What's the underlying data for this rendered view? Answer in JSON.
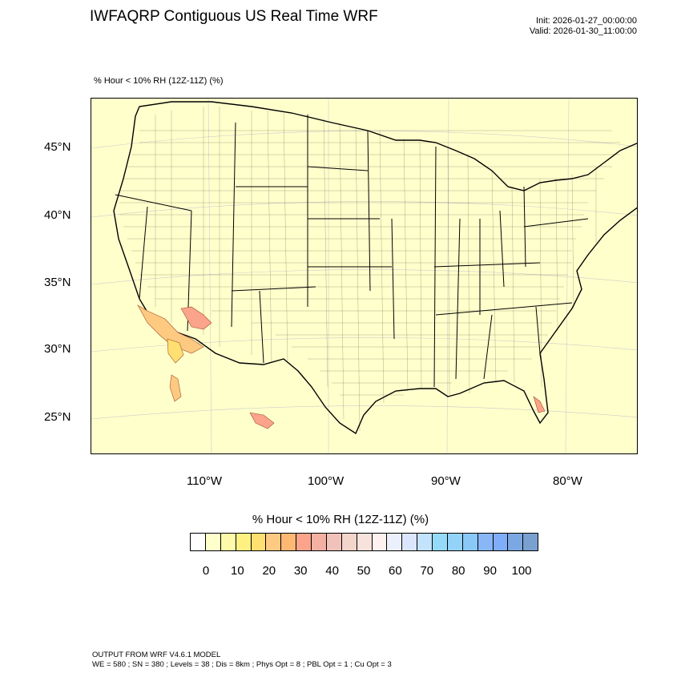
{
  "header": {
    "title": "IWFAQRP Contiguous US Real Time WRF",
    "init": "Init: 2026-01-27_00:00:00",
    "valid": "Valid: 2026-01-30_11:00:00"
  },
  "plot": {
    "subtitle": "% Hour < 10% RH (12Z-11Z)   (%)",
    "lat_labels": [
      "45°N",
      "40°N",
      "35°N",
      "30°N",
      "25°N"
    ],
    "lon_labels": [
      "110°W",
      "100°W",
      "90°W",
      "80°W"
    ],
    "colors": {
      "land": "#ffffcc",
      "state_border": "#000000",
      "county_border": "#000000"
    }
  },
  "colorbar": {
    "title": "% Hour < 10% RH (12Z-11Z)  (%)",
    "colors": [
      "#ffffff",
      "#ffffcc",
      "#fffaaa",
      "#fff082",
      "#ffe071",
      "#fec981",
      "#ffb873",
      "#fba38b",
      "#f3b0a3",
      "#f1c2b9",
      "#f3d5cb",
      "#f7e2dc",
      "#fff1f0",
      "#ecf0fd",
      "#dbe6fc",
      "#c3e2fc",
      "#95dbf9",
      "#93d3f7",
      "#8ac8f8",
      "#88b6f6",
      "#7fadfa",
      "#7ba8e2",
      "#7aa0cf"
    ],
    "ticks": [
      "0",
      "10",
      "20",
      "30",
      "40",
      "50",
      "60",
      "70",
      "80",
      "90",
      "100"
    ]
  },
  "footer": {
    "line1": "OUTPUT FROM WRF V4.6.1 MODEL",
    "line2": "WE = 580 ; SN = 380 ; Levels = 38 ; Dis = 8km ; Phys Opt = 8 ; PBL Opt = 1 ; Cu Opt = 3"
  }
}
